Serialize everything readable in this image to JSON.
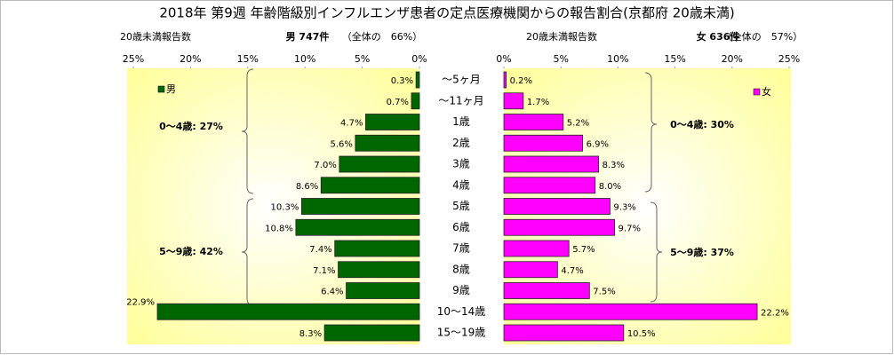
{
  "chart_data": {
    "type": "pyramid",
    "title": "2018年 第9週 年齢階級別インフルエンザ患者の定点医療機関からの報告割合(京都府 20歳未満)",
    "categories": [
      "～5ヶ月",
      "～11ヶ月",
      "1歳",
      "2歳",
      "3歳",
      "4歳",
      "5歳",
      "6歳",
      "7歳",
      "8歳",
      "9歳",
      "10～14歳",
      "15～19歳"
    ],
    "xlim": [
      0,
      25
    ],
    "xticks": [
      {
        "value": 0,
        "label": "0%"
      },
      {
        "value": 5,
        "label": "5%"
      },
      {
        "value": 10,
        "label": "10%"
      },
      {
        "value": 15,
        "label": "15%"
      },
      {
        "value": 20,
        "label": "20%"
      },
      {
        "value": 25,
        "label": "25%"
      }
    ],
    "series": [
      {
        "name": "男",
        "color": "#006600",
        "axis_label": "20歳未満報告数",
        "total_label": "男 747件",
        "share_label": "（全体の　66%）",
        "group_labels": [
          "0～4歳: 27%",
          "5～9歳: 42%"
        ],
        "values": [
          0.3,
          0.7,
          4.7,
          5.6,
          7.0,
          8.6,
          10.3,
          10.8,
          7.4,
          7.1,
          6.4,
          22.9,
          8.3
        ],
        "value_labels": [
          "0.3%",
          "0.7%",
          "4.7%",
          "5.6%",
          "7.0%",
          "8.6%",
          "10.3%",
          "10.8%",
          "7.4%",
          "7.1%",
          "6.4%",
          "22.9%",
          "8.3%"
        ]
      },
      {
        "name": "女",
        "color": "#ff00ff",
        "axis_label": "20歳未満報告数",
        "total_label": "女 636件",
        "share_label": "（全体の　57%）",
        "group_labels": [
          "0～4歳: 30%",
          "5～9歳: 37%"
        ],
        "values": [
          0.2,
          1.7,
          5.2,
          6.9,
          8.3,
          8.0,
          9.3,
          9.7,
          5.7,
          4.7,
          7.5,
          22.2,
          10.5
        ],
        "value_labels": [
          "0.2%",
          "1.7%",
          "5.2%",
          "6.9%",
          "8.3%",
          "8.0%",
          "9.3%",
          "9.7%",
          "5.7%",
          "4.7%",
          "7.5%",
          "22.2%",
          "10.5%"
        ]
      }
    ]
  }
}
